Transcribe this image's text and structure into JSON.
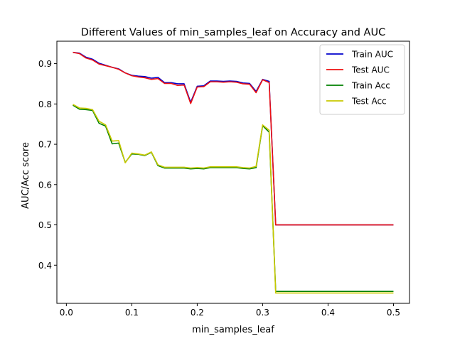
{
  "chart_data": {
    "type": "line",
    "title": "Different Values of min_samples_leaf on Accuracy and AUC",
    "xlabel": "min_samples_leaf",
    "ylabel": "AUC/Acc score",
    "xlim": [
      -0.0145,
      0.5245
    ],
    "ylim": [
      0.3053,
      0.9557
    ],
    "xticks": [
      0.0,
      0.1,
      0.2,
      0.3,
      0.4,
      0.5
    ],
    "xtick_labels": [
      "0.0",
      "0.1",
      "0.2",
      "0.3",
      "0.4",
      "0.5"
    ],
    "yticks": [
      0.4,
      0.5,
      0.6,
      0.7,
      0.8,
      0.9
    ],
    "ytick_labels": [
      "0.4",
      "0.5",
      "0.6",
      "0.7",
      "0.8",
      "0.9"
    ],
    "grid": false,
    "legend_position": "top-right",
    "x": [
      0.01,
      0.02,
      0.03,
      0.04,
      0.05,
      0.06,
      0.07,
      0.08,
      0.09,
      0.1,
      0.11,
      0.12,
      0.13,
      0.14,
      0.15,
      0.16,
      0.17,
      0.18,
      0.19,
      0.2,
      0.21,
      0.22,
      0.23,
      0.24,
      0.25,
      0.26,
      0.27,
      0.28,
      0.29,
      0.3,
      0.31,
      0.32,
      0.33,
      0.34,
      0.35,
      0.36,
      0.37,
      0.38,
      0.39,
      0.4,
      0.41,
      0.42,
      0.43,
      0.44,
      0.45,
      0.46,
      0.47,
      0.48,
      0.49,
      0.5
    ],
    "series": [
      {
        "name": "Train AUC",
        "color": "#0000cc",
        "values": [
          0.928,
          0.926,
          0.916,
          0.911,
          0.901,
          0.896,
          0.891,
          0.887,
          0.877,
          0.871,
          0.869,
          0.868,
          0.864,
          0.866,
          0.853,
          0.853,
          0.85,
          0.85,
          0.804,
          0.844,
          0.845,
          0.857,
          0.857,
          0.856,
          0.857,
          0.856,
          0.852,
          0.851,
          0.831,
          0.861,
          0.856,
          0.5,
          0.5,
          0.5,
          0.5,
          0.5,
          0.5,
          0.5,
          0.5,
          0.5,
          0.5,
          0.5,
          0.5,
          0.5,
          0.5,
          0.5,
          0.5,
          0.5,
          0.5,
          0.5
        ]
      },
      {
        "name": "Test AUC",
        "color": "#ee1111",
        "values": [
          0.928,
          0.925,
          0.914,
          0.909,
          0.899,
          0.895,
          0.891,
          0.886,
          0.877,
          0.87,
          0.867,
          0.865,
          0.861,
          0.863,
          0.851,
          0.851,
          0.846,
          0.847,
          0.801,
          0.842,
          0.843,
          0.855,
          0.855,
          0.854,
          0.855,
          0.854,
          0.85,
          0.849,
          0.828,
          0.86,
          0.853,
          0.5,
          0.5,
          0.5,
          0.5,
          0.5,
          0.5,
          0.5,
          0.5,
          0.5,
          0.5,
          0.5,
          0.5,
          0.5,
          0.5,
          0.5,
          0.5,
          0.5,
          0.5,
          0.5
        ]
      },
      {
        "name": "Train Acc",
        "color": "#008000",
        "values": [
          0.797,
          0.787,
          0.786,
          0.784,
          0.752,
          0.745,
          0.701,
          0.703,
          0.655,
          0.676,
          0.675,
          0.672,
          0.68,
          0.647,
          0.641,
          0.641,
          0.641,
          0.641,
          0.639,
          0.64,
          0.639,
          0.642,
          0.642,
          0.642,
          0.642,
          0.642,
          0.64,
          0.639,
          0.642,
          0.746,
          0.73,
          0.335,
          0.335,
          0.335,
          0.335,
          0.335,
          0.335,
          0.335,
          0.335,
          0.335,
          0.335,
          0.335,
          0.335,
          0.335,
          0.335,
          0.335,
          0.335,
          0.335,
          0.335,
          0.335
        ]
      },
      {
        "name": "Test Acc",
        "color": "#c8c800",
        "values": [
          0.799,
          0.79,
          0.789,
          0.786,
          0.757,
          0.748,
          0.708,
          0.709,
          0.654,
          0.678,
          0.676,
          0.673,
          0.681,
          0.649,
          0.643,
          0.643,
          0.643,
          0.643,
          0.641,
          0.642,
          0.641,
          0.644,
          0.644,
          0.644,
          0.644,
          0.644,
          0.642,
          0.641,
          0.645,
          0.748,
          0.735,
          0.331,
          0.331,
          0.331,
          0.331,
          0.331,
          0.331,
          0.331,
          0.331,
          0.331,
          0.331,
          0.331,
          0.331,
          0.331,
          0.331,
          0.331,
          0.331,
          0.331,
          0.331,
          0.331
        ]
      }
    ]
  }
}
